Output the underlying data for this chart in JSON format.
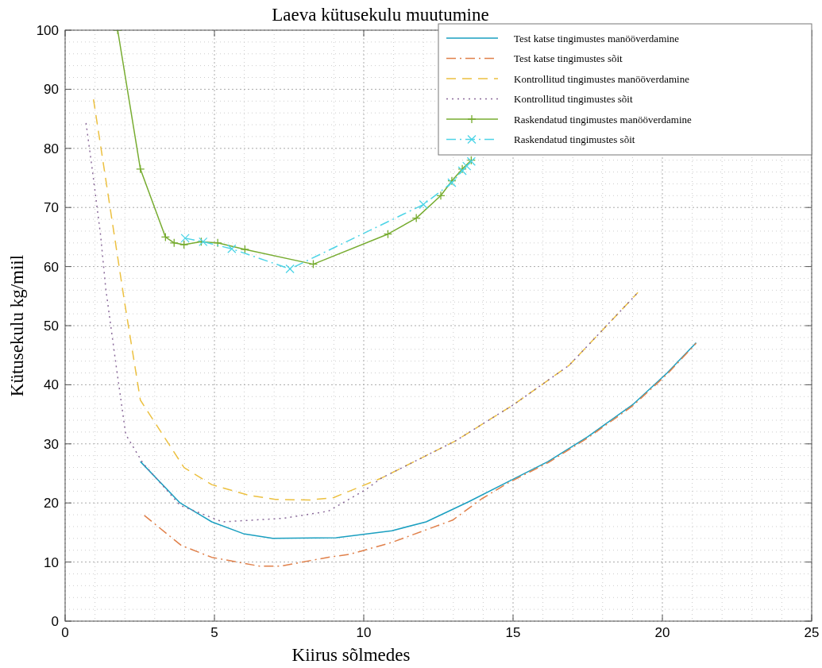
{
  "chart_data": {
    "type": "line",
    "title": "Laeva kütusekulu muutumine",
    "xlabel": "Kiirus sõlmedes",
    "ylabel": "Kütusekulu kg/miil",
    "xlim": [
      0,
      25
    ],
    "ylim": [
      0,
      100
    ],
    "xticks": [
      0,
      5,
      10,
      15,
      20,
      25
    ],
    "yticks": [
      0,
      10,
      20,
      30,
      40,
      50,
      60,
      70,
      80,
      90,
      100
    ],
    "grid": true,
    "legend": "top right",
    "series": [
      {
        "name": "Test katse tingimustes manööverdamine",
        "color": "#1a9fc0",
        "line_style": "solid",
        "marker": "none",
        "x": [
          2.52,
          3.85,
          4.91,
          5.97,
          6.95,
          9.08,
          10.94,
          12.09,
          13.51,
          14.84,
          16.17,
          17.5,
          19.0,
          20.16,
          21.13
        ],
        "values": [
          27.0,
          20.0,
          16.8,
          14.8,
          14.0,
          14.1,
          15.3,
          16.8,
          20.2,
          23.6,
          27.0,
          31.2,
          36.6,
          42.0,
          47.1
        ]
      },
      {
        "name": "Test katse tingimustes sõit",
        "color": "#e0804a",
        "line_style": "dashdot",
        "marker": "none",
        "x": [
          2.65,
          3.89,
          4.91,
          6.51,
          7.22,
          8.8,
          9.52,
          10.93,
          12.98,
          13.95,
          14.84,
          16.17,
          17.5,
          19.0,
          20.16,
          21.13
        ],
        "values": [
          17.9,
          12.8,
          10.8,
          9.3,
          9.3,
          10.8,
          11.3,
          13.3,
          17.1,
          20.7,
          23.4,
          26.8,
          31.0,
          36.4,
          41.8,
          47.0
        ]
      },
      {
        "name": "Kontrollitud tingimustes manööverdamine",
        "color": "#ecc040",
        "line_style": "dashed",
        "marker": "none",
        "x": [
          0.95,
          1.99,
          2.52,
          3.98,
          4.91,
          6.15,
          7.04,
          8.19,
          8.99,
          9.52,
          10.59,
          13.07,
          15.01,
          16.88,
          19.18
        ],
        "values": [
          88.3,
          54.0,
          37.4,
          26.0,
          23.1,
          21.3,
          20.6,
          20.5,
          20.9,
          22.0,
          24.2,
          30.5,
          36.6,
          43.3,
          55.6
        ]
      },
      {
        "name": "Kontrollitud tingimustes sõit",
        "color": "#8a6a9a",
        "line_style": "dotted",
        "marker": "none",
        "x": [
          0.7,
          0.92,
          1.19,
          1.36,
          1.72,
          2.03,
          2.61,
          3.85,
          5.27,
          7.3,
          8.81,
          10.05,
          10.59,
          13.07,
          15.01,
          16.88,
          19.18
        ],
        "values": [
          84.3,
          76.0,
          65.2,
          56.3,
          42.8,
          31.6,
          26.7,
          19.6,
          16.8,
          17.4,
          18.6,
          22.2,
          24.2,
          30.5,
          36.6,
          43.3,
          55.6
        ]
      },
      {
        "name": "Raskendatud tingimustes manööverdamine",
        "color": "#77ac30",
        "line_style": "solid",
        "marker": "plus",
        "x": [
          1.76,
          2.52,
          3.36,
          3.65,
          3.98,
          4.56,
          5.11,
          6.02,
          8.31,
          10.81,
          11.76,
          12.58,
          12.95,
          13.3,
          13.6
        ],
        "values": [
          100,
          76.5,
          65.0,
          64.0,
          63.7,
          64.2,
          64.0,
          62.9,
          60.4,
          65.5,
          68.2,
          72.0,
          74.5,
          76.5,
          78.0
        ]
      },
      {
        "name": "Raskendatud tingimustes sõit",
        "color": "#4dd4e6",
        "line_style": "dashdot",
        "marker": "cross",
        "x": [
          4.02,
          4.62,
          5.58,
          7.53,
          12.0,
          12.95,
          13.3,
          13.45,
          13.6
        ],
        "values": [
          64.8,
          64.2,
          63.0,
          59.6,
          70.5,
          74.2,
          76.2,
          77.0,
          77.8
        ]
      }
    ]
  }
}
